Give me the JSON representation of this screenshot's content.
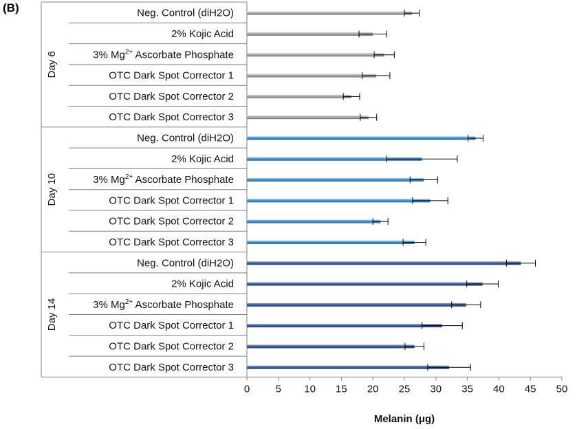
{
  "panel_label": "(B)",
  "chart_data": {
    "type": "bar",
    "orientation": "horizontal",
    "xlabel": "Melanin (μg)",
    "xlim": [
      0,
      50
    ],
    "xticks": [
      0,
      5,
      10,
      15,
      20,
      25,
      30,
      35,
      40,
      45,
      50
    ],
    "grid": false,
    "legend": "none",
    "groups": [
      {
        "name": "Day 6",
        "color": "#a6a6a6",
        "categories": [
          {
            "label": "Neg. Control (diH2O)",
            "value": 26.2,
            "error": 1.2
          },
          {
            "label": "2% Kojic Acid",
            "value": 20.0,
            "error": 2.2
          },
          {
            "label": "3% Mg²⁺ Ascorbate Phosphate",
            "value": 21.8,
            "error": 1.6
          },
          {
            "label": "OTC Dark Spot Corrector 1",
            "value": 20.5,
            "error": 2.2
          },
          {
            "label": "OTC Dark Spot Corrector 2",
            "value": 16.6,
            "error": 1.3
          },
          {
            "label": "OTC Dark Spot Corrector 3",
            "value": 19.3,
            "error": 1.3
          }
        ]
      },
      {
        "name": "Day 10",
        "color": "#3d8fd0",
        "categories": [
          {
            "label": "Neg. Control (diH2O)",
            "value": 36.3,
            "error": 1.2
          },
          {
            "label": "2% Kojic Acid",
            "value": 27.8,
            "error": 5.6
          },
          {
            "label": "3% Mg²⁺ Ascorbate Phosphate",
            "value": 28.1,
            "error": 2.2
          },
          {
            "label": "OTC Dark Spot Corrector 1",
            "value": 29.1,
            "error": 2.8
          },
          {
            "label": "OTC Dark Spot Corrector 2",
            "value": 21.2,
            "error": 1.2
          },
          {
            "label": "OTC Dark Spot Corrector 3",
            "value": 26.6,
            "error": 1.8
          }
        ]
      },
      {
        "name": "Day 14",
        "color": "#3a5a9e",
        "categories": [
          {
            "label": "Neg. Control (diH2O)",
            "value": 43.5,
            "error": 2.3
          },
          {
            "label": "2% Kojic Acid",
            "value": 37.4,
            "error": 2.5
          },
          {
            "label": "3% Mg²⁺ Ascorbate Phosphate",
            "value": 34.8,
            "error": 2.3
          },
          {
            "label": "OTC Dark Spot Corrector 1",
            "value": 31.0,
            "error": 3.2
          },
          {
            "label": "OTC Dark Spot Corrector 2",
            "value": 26.6,
            "error": 1.5
          },
          {
            "label": "OTC Dark Spot Corrector 3",
            "value": 32.1,
            "error": 3.4
          }
        ]
      }
    ]
  }
}
